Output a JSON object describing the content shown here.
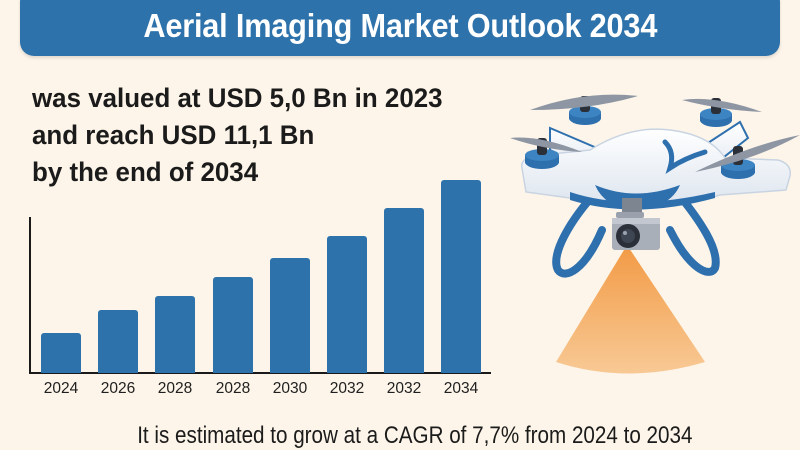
{
  "header": {
    "title": "Aerial Imaging Market Outlook 2034"
  },
  "summary": {
    "lines": [
      "was valued at USD 5,0 Bn in 2023",
      "and reach USD 11,1 Bn",
      "by the end of 2034"
    ]
  },
  "footer": {
    "text": "It is estimated to grow at a CAGR of 7,7% from 2024 to 2034"
  },
  "illustration": {
    "subject": "drone-with-camera-icon",
    "beam": "camera-beam-cone"
  },
  "colors": {
    "background": "#FDF5E9",
    "accent": "#2E72AB",
    "beam": "#F4A45A",
    "text": "#1B1B1B"
  },
  "chart_data": {
    "type": "bar",
    "title": "Aerial Imaging Market Outlook 2034",
    "categories": [
      "2024",
      "2026",
      "2028",
      "2028",
      "2030",
      "2032",
      "2032",
      "2034"
    ],
    "values": [
      2.3,
      3.6,
      4.4,
      5.5,
      6.6,
      7.9,
      9.5,
      11.1
    ],
    "unit": "USD Bn (estimated from bar heights; no y-axis ticks shown)",
    "xlabel": "",
    "ylabel": "",
    "ylim": [
      0,
      12
    ],
    "grid": false,
    "legend": null,
    "annotations": [
      "was valued at USD 5,0 Bn in 2023",
      "and reach USD 11,1 Bn by the end of 2034",
      "It is estimated to grow at a CAGR of 7,7% from 2024 to 2034"
    ],
    "bar_color": "#2E72AB"
  }
}
